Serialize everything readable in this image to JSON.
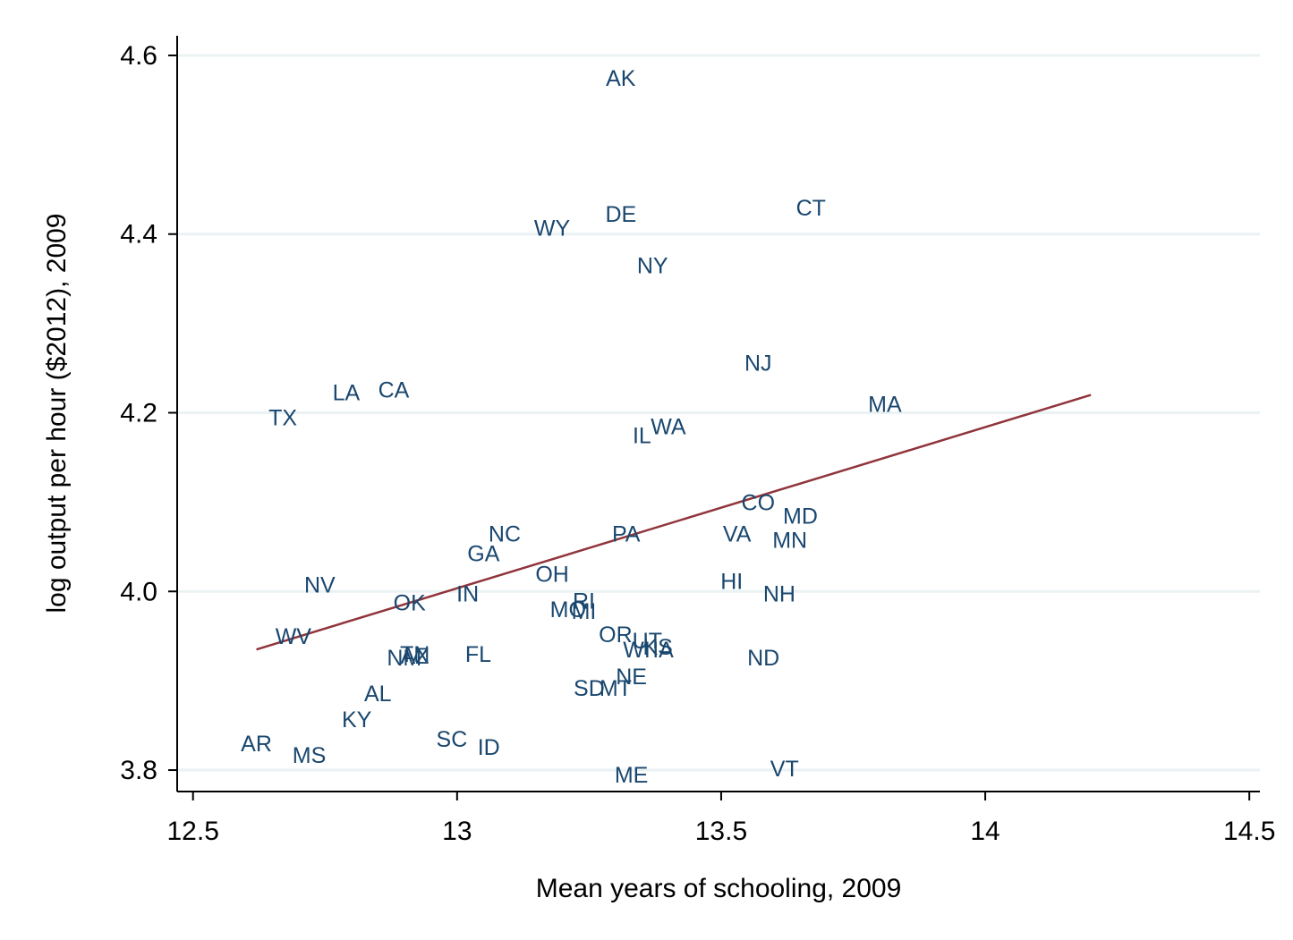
{
  "chart_data": {
    "type": "scatter",
    "title": "",
    "xlabel": "Mean years of schooling, 2009",
    "ylabel": "log output per hour ($2012), 2009",
    "xlim": [
      12.47,
      14.52
    ],
    "ylim": [
      3.776,
      4.622
    ],
    "x_ticks": [
      12.5,
      13,
      13.5,
      14,
      14.5
    ],
    "x_tick_labels": [
      "12.5",
      "13",
      "13.5",
      "14",
      "14.5"
    ],
    "y_ticks": [
      3.8,
      4.0,
      4.2,
      4.4,
      4.6
    ],
    "y_tick_labels": [
      "3.8",
      "4.0",
      "4.2",
      "4.4",
      "4.6"
    ],
    "grid": "horizontal",
    "legend": "none",
    "colors": {
      "markers": "#1a476f",
      "fit_line": "#90353b",
      "grid": "#eaf2f3"
    },
    "series": [
      {
        "type": "scatter_labels",
        "points": [
          {
            "label": "AK",
            "x": 13.31,
            "y": 4.575
          },
          {
            "label": "CT",
            "x": 13.67,
            "y": 4.43
          },
          {
            "label": "DE",
            "x": 13.31,
            "y": 4.423
          },
          {
            "label": "WY",
            "x": 13.18,
            "y": 4.407
          },
          {
            "label": "NY",
            "x": 13.37,
            "y": 4.365
          },
          {
            "label": "NJ",
            "x": 13.57,
            "y": 4.256
          },
          {
            "label": "CA",
            "x": 12.88,
            "y": 4.226
          },
          {
            "label": "LA",
            "x": 12.79,
            "y": 4.223
          },
          {
            "label": "MA",
            "x": 13.81,
            "y": 4.21
          },
          {
            "label": "TX",
            "x": 12.67,
            "y": 4.195
          },
          {
            "label": "WA",
            "x": 13.4,
            "y": 4.185
          },
          {
            "label": "IL",
            "x": 13.35,
            "y": 4.175
          },
          {
            "label": "CO",
            "x": 13.57,
            "y": 4.1
          },
          {
            "label": "MD",
            "x": 13.65,
            "y": 4.085
          },
          {
            "label": "NC",
            "x": 13.09,
            "y": 4.065
          },
          {
            "label": "PA",
            "x": 13.32,
            "y": 4.065
          },
          {
            "label": "VA",
            "x": 13.53,
            "y": 4.065
          },
          {
            "label": "MN",
            "x": 13.63,
            "y": 4.058
          },
          {
            "label": "GA",
            "x": 13.05,
            "y": 4.043
          },
          {
            "label": "OH",
            "x": 13.18,
            "y": 4.02
          },
          {
            "label": "HI",
            "x": 13.52,
            "y": 4.012
          },
          {
            "label": "NV",
            "x": 12.74,
            "y": 4.008
          },
          {
            "label": "IN",
            "x": 13.02,
            "y": 3.998
          },
          {
            "label": "NH",
            "x": 13.61,
            "y": 3.998
          },
          {
            "label": "RI",
            "x": 13.24,
            "y": 3.99
          },
          {
            "label": "OK",
            "x": 12.91,
            "y": 3.988
          },
          {
            "label": "MO",
            "x": 13.21,
            "y": 3.98
          },
          {
            "label": "MI",
            "x": 13.24,
            "y": 3.978
          },
          {
            "label": "OR",
            "x": 13.3,
            "y": 3.952
          },
          {
            "label": "UT",
            "x": 13.36,
            "y": 3.945
          },
          {
            "label": "KS",
            "x": 13.38,
            "y": 3.938
          },
          {
            "label": "WI",
            "x": 13.34,
            "y": 3.935
          },
          {
            "label": "IA",
            "x": 13.39,
            "y": 3.935
          },
          {
            "label": "WV",
            "x": 12.69,
            "y": 3.95
          },
          {
            "label": "TN",
            "x": 12.92,
            "y": 3.93
          },
          {
            "label": "AZ",
            "x": 12.92,
            "y": 3.928
          },
          {
            "label": "NM",
            "x": 12.9,
            "y": 3.926
          },
          {
            "label": "FL",
            "x": 13.04,
            "y": 3.93
          },
          {
            "label": "ND",
            "x": 13.58,
            "y": 3.926
          },
          {
            "label": "NE",
            "x": 13.33,
            "y": 3.905
          },
          {
            "label": "SD",
            "x": 13.25,
            "y": 3.892
          },
          {
            "label": "MT",
            "x": 13.3,
            "y": 3.892
          },
          {
            "label": "AL",
            "x": 12.85,
            "y": 3.886
          },
          {
            "label": "KY",
            "x": 12.81,
            "y": 3.857
          },
          {
            "label": "SC",
            "x": 12.99,
            "y": 3.835
          },
          {
            "label": "AR",
            "x": 12.62,
            "y": 3.83
          },
          {
            "label": "ID",
            "x": 13.06,
            "y": 3.826
          },
          {
            "label": "MS",
            "x": 12.72,
            "y": 3.817
          },
          {
            "label": "VT",
            "x": 13.62,
            "y": 3.802
          },
          {
            "label": "ME",
            "x": 13.33,
            "y": 3.795
          }
        ]
      },
      {
        "type": "fit_line",
        "x": [
          12.62,
          14.2
        ],
        "y": [
          3.935,
          4.22
        ]
      }
    ]
  }
}
